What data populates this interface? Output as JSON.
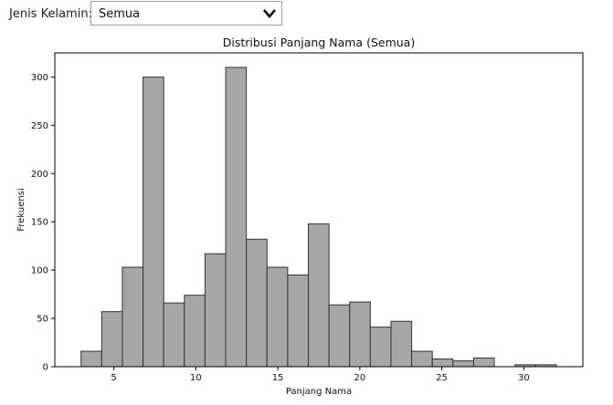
{
  "filter": {
    "label": "Jenis Kelamin:",
    "selected": "Semua",
    "chevron_icon": "chevron-down-icon"
  },
  "chart_data": {
    "type": "bar",
    "title": "Distribusi Panjang Nama (Semua)",
    "xlabel": "Panjang Nama",
    "ylabel": "Frekuensi",
    "bin_edges": [
      3.0,
      4.26,
      5.52,
      6.78,
      8.04,
      9.3,
      10.56,
      11.82,
      13.08,
      14.34,
      15.6,
      16.86,
      18.12,
      19.38,
      20.64,
      21.9,
      23.16,
      24.42,
      25.68,
      26.94,
      28.2,
      29.46,
      30.72,
      31.98
    ],
    "values": [
      16,
      57,
      103,
      300,
      66,
      74,
      117,
      310,
      132,
      103,
      95,
      148,
      64,
      67,
      41,
      47,
      16,
      8,
      6,
      9,
      0,
      2,
      2
    ],
    "xlim": [
      1.4,
      33.6
    ],
    "ylim": [
      0,
      325
    ],
    "xticks": [
      5,
      10,
      15,
      20,
      25,
      30
    ],
    "yticks": [
      0,
      50,
      100,
      150,
      200,
      250,
      300
    ],
    "bar_color": "#a6a6a6",
    "edge_color": "#333333",
    "grid": false
  }
}
